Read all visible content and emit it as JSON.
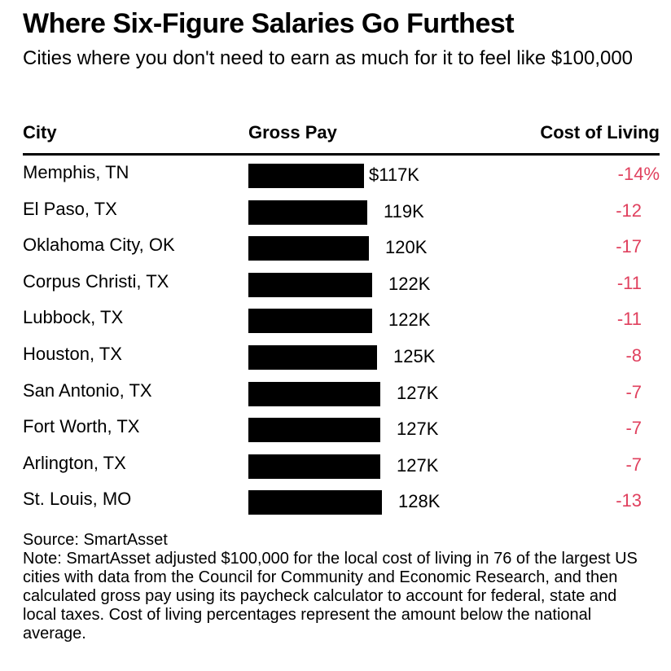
{
  "title": "Where Six-Figure Salaries Go Furthest",
  "subtitle": "Cities where you don't need to earn as much for it to feel like $100,000",
  "headers": {
    "city": "City",
    "gross_pay": "Gross Pay",
    "cost_of_living": "Cost of Living"
  },
  "accent_color": "#e0405e",
  "bar_color": "#000000",
  "chart_data": {
    "type": "bar",
    "categories": [
      "Memphis, TN",
      "El Paso, TX",
      "Oklahoma City, OK",
      "Corpus Christi, TX",
      "Lubbock, TX",
      "Houston, TX",
      "San Antonio, TX",
      "Fort Worth, TX",
      "Arlington, TX",
      "St. Louis, MO"
    ],
    "values": [
      117,
      119,
      120,
      122,
      122,
      125,
      127,
      127,
      127,
      128
    ],
    "value_labels": [
      "$117K",
      "119K",
      "120K",
      "122K",
      "122K",
      "125K",
      "127K",
      "127K",
      "127K",
      "128K"
    ],
    "cost_of_living": [
      -14,
      -12,
      -17,
      -11,
      -11,
      -8,
      -7,
      -7,
      -7,
      -13
    ],
    "cost_of_living_labels": [
      "-14%",
      "-12",
      "-17",
      "-11",
      "-11",
      "-8",
      "-7",
      "-7",
      "-7",
      "-13"
    ],
    "orientation": "horizontal"
  },
  "source": "Source: SmartAsset",
  "note": "Note: SmartAsset adjusted $100,000 for the local cost of living in 76 of the largest US cities with data from the Council for Community and Economic Research, and then calculated gross pay using its paycheck calculator to account for federal, state and local taxes. Cost of living percentages represent the amount below the national average."
}
